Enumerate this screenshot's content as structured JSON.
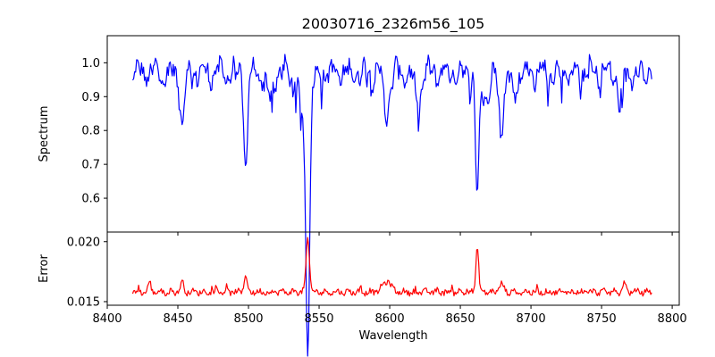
{
  "chart_data": [
    {
      "type": "line",
      "title": "20030716_2326m56_105",
      "ylabel": "Spectrum",
      "xlim": [
        8400,
        8805
      ],
      "ylim": [
        0.5,
        1.08
      ],
      "xticks": [
        8400,
        8450,
        8500,
        8550,
        8600,
        8650,
        8700,
        8750,
        8800
      ],
      "yticks": [
        0.6,
        0.7,
        0.8,
        0.9,
        1.0
      ],
      "ytick_labels": [
        "0.6",
        "0.7",
        "0.8",
        "0.9",
        "1.0"
      ],
      "color": "#0000ff",
      "x_start": 8418,
      "x_end": 8786,
      "baseline": 0.97,
      "features": [
        {
          "x": 8453,
          "depth": 0.14,
          "width": 1.6
        },
        {
          "x": 8498,
          "depth": 0.27,
          "width": 1.3
        },
        {
          "x": 8515,
          "depth": 0.07,
          "width": 2.5
        },
        {
          "x": 8542,
          "depth": 0.7,
          "width": 1.4
        },
        {
          "x": 8539,
          "depth": 0.12,
          "width": 3.5
        },
        {
          "x": 8598,
          "depth": 0.12,
          "width": 2.0
        },
        {
          "x": 8620,
          "depth": 0.1,
          "width": 2.0
        },
        {
          "x": 8662,
          "depth": 0.36,
          "width": 1.3
        },
        {
          "x": 8668,
          "depth": 0.07,
          "width": 2.5
        },
        {
          "x": 8679,
          "depth": 0.17,
          "width": 1.6
        },
        {
          "x": 8688,
          "depth": 0.06,
          "width": 2.0
        },
        {
          "x": 8763,
          "depth": 0.1,
          "width": 1.5
        }
      ]
    },
    {
      "type": "line",
      "xlabel": "Wavelength",
      "ylabel": "Error",
      "xlim": [
        8400,
        8805
      ],
      "ylim": [
        0.0147,
        0.0208
      ],
      "xticks": [
        8400,
        8450,
        8500,
        8550,
        8600,
        8650,
        8700,
        8750,
        8800
      ],
      "xtick_labels": [
        "8400",
        "8450",
        "8500",
        "8550",
        "8600",
        "8650",
        "8700",
        "8750",
        "8800"
      ],
      "yticks": [
        0.015,
        0.02
      ],
      "ytick_labels": [
        "0.015",
        "0.020"
      ],
      "color": "#ff0000",
      "x_start": 8418,
      "x_end": 8786,
      "baseline": 0.0158,
      "features": [
        {
          "x": 8542,
          "height": 0.0044,
          "width": 1.2
        },
        {
          "x": 8662,
          "height": 0.0037,
          "width": 1.0
        },
        {
          "x": 8498,
          "height": 0.0015,
          "width": 1.0
        },
        {
          "x": 8430,
          "height": 0.0008,
          "width": 1.0
        },
        {
          "x": 8453,
          "height": 0.0008,
          "width": 1.2
        },
        {
          "x": 8598,
          "height": 0.0009,
          "width": 3.0
        },
        {
          "x": 8679,
          "height": 0.0007,
          "width": 1.5
        },
        {
          "x": 8766,
          "height": 0.0009,
          "width": 1.0
        }
      ]
    }
  ]
}
